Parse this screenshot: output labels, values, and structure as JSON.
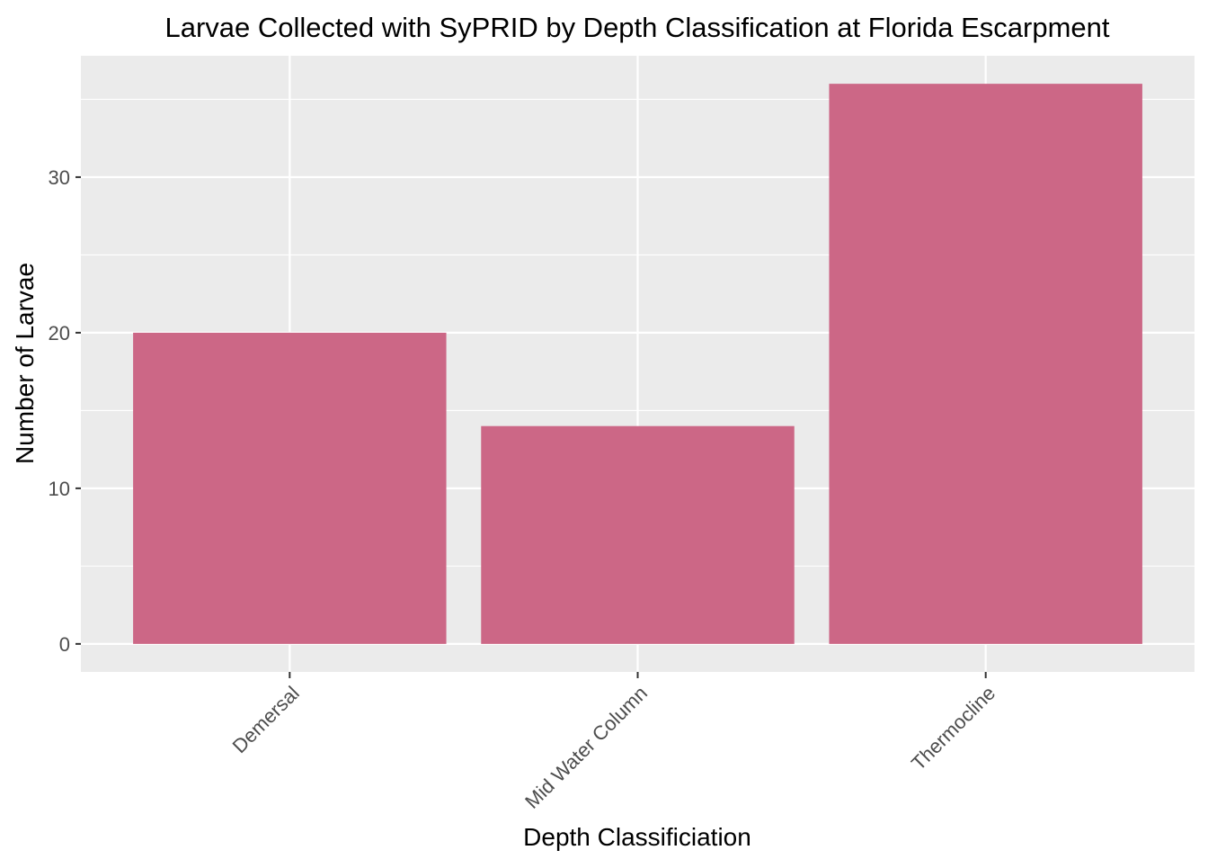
{
  "chart_data": {
    "type": "bar",
    "title": "Larvae Collected with SyPRID by Depth Classification at Florida Escarpment",
    "xlabel": "Depth Classificiation",
    "ylabel": "Number of Larvae",
    "categories": [
      "Demersal",
      "Mid Water Column",
      "Thermocline"
    ],
    "values": [
      20,
      14,
      36
    ],
    "ylim": [
      -1.8,
      37.8
    ],
    "yticks": [
      0,
      10,
      20,
      30
    ],
    "ytick_labels": [
      "0",
      "10",
      "20",
      "30"
    ],
    "grid": true,
    "colors": {
      "bar": "#CC6786",
      "panel": "#EBEBEB",
      "grid": "#FFFFFF"
    }
  }
}
